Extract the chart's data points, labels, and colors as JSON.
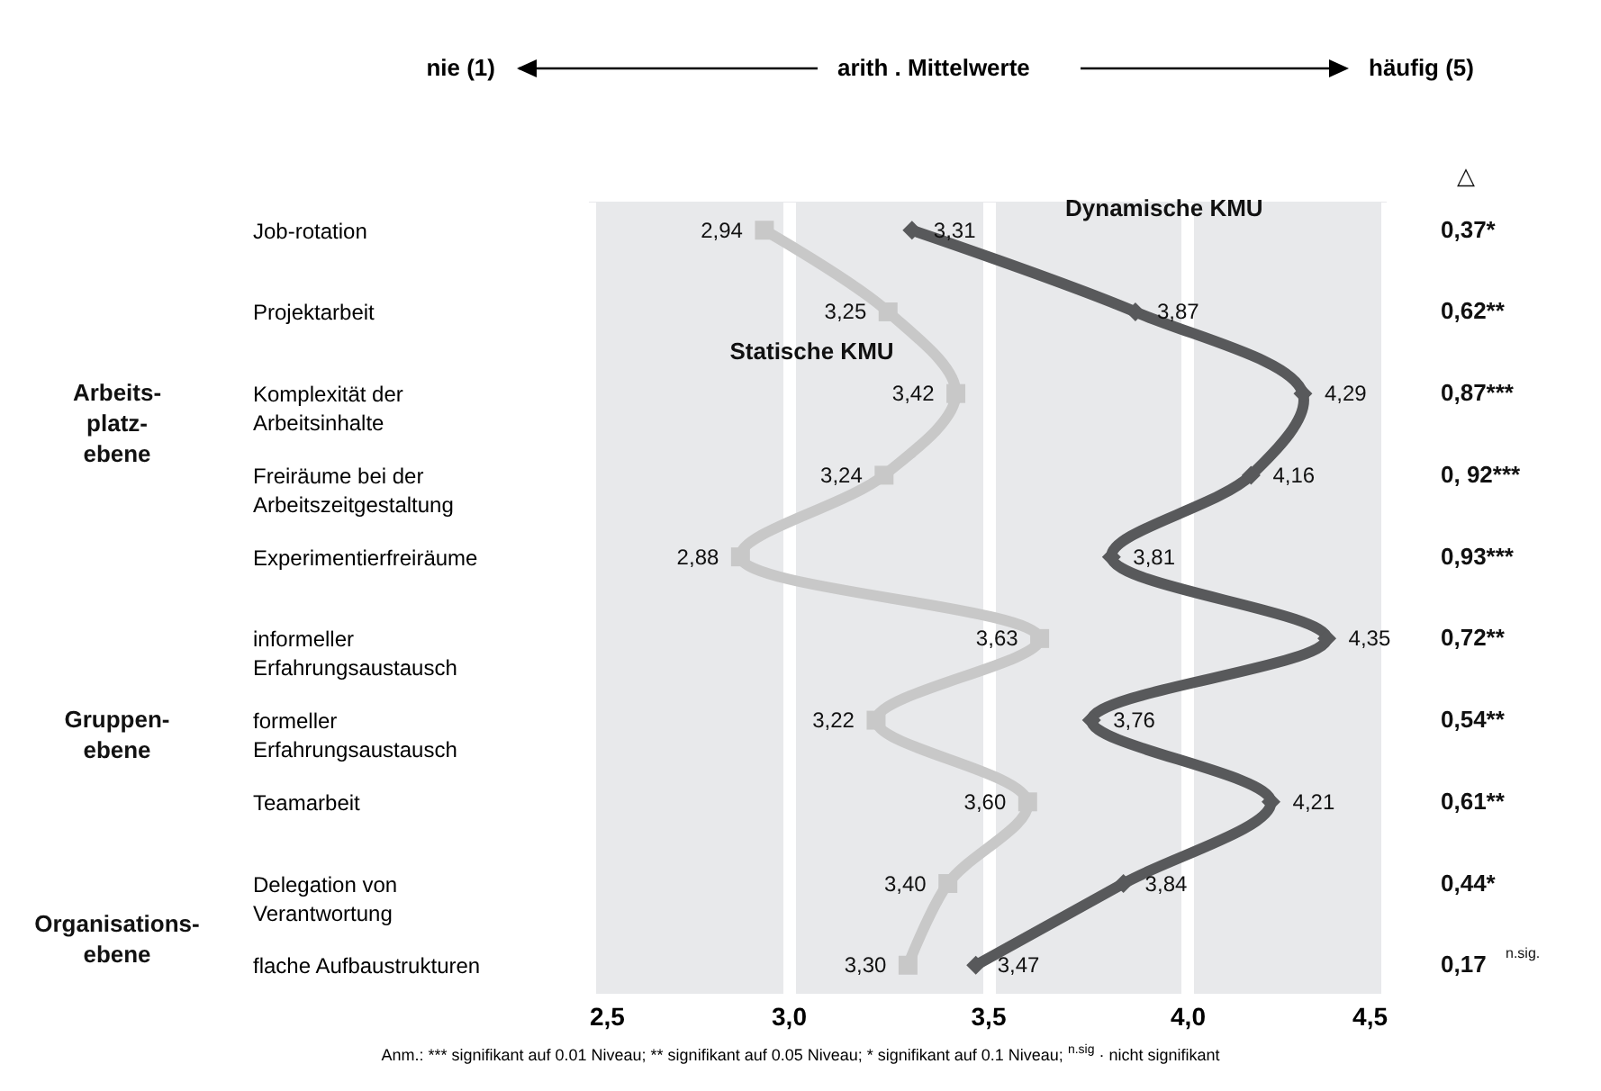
{
  "chart_data": {
    "type": "line",
    "orientation": "horizontal",
    "categories": [
      "Job-rotation",
      "Projektarbeit",
      "Komplexität der\nArbeitsinhalte",
      "Freiräume bei der\nArbeitszeitgestaltung",
      "Experimentierfreiräume",
      "informeller\nErfahrungsaustausch",
      "formeller\nErfahrungsaustausch",
      "Teamarbeit",
      "Delegation von\nVerantwortung",
      "flache Aufbaustrukturen"
    ],
    "series": [
      {
        "name": "Statische KMU",
        "color": "#c8c8c8",
        "marker": "square",
        "values": [
          2.94,
          3.25,
          3.42,
          3.24,
          2.88,
          3.63,
          3.22,
          3.6,
          3.4,
          3.3
        ],
        "value_labels": [
          "2,94",
          "3,25",
          "3,42",
          "3,24",
          "2,88",
          "3,63",
          "3,22",
          "3,60",
          "3,40",
          "3,30"
        ]
      },
      {
        "name": "Dynamische KMU",
        "color": "#58595b",
        "marker": "diamond",
        "values": [
          3.31,
          3.87,
          4.29,
          4.16,
          3.81,
          4.35,
          3.76,
          4.21,
          3.84,
          3.47
        ],
        "value_labels": [
          "3,31",
          "3,87",
          "4,29",
          "4,16",
          "3,81",
          "4,35",
          "3,76",
          "4,21",
          "3,84",
          "3,47"
        ]
      }
    ],
    "xlim": [
      2.5,
      4.5
    ],
    "xticks": [
      {
        "value": 2.5,
        "label": "2,5"
      },
      {
        "value": 3.0,
        "label": "3,0"
      },
      {
        "value": 3.5,
        "label": "3,5"
      },
      {
        "value": 4.0,
        "label": "4,0"
      },
      {
        "value": 4.5,
        "label": "4,5"
      }
    ],
    "grid": "x",
    "line_style": "solid",
    "annotations": [
      "nie (1)",
      "arith . Mittelwerte",
      "häufig (5)",
      "△",
      "0,37*",
      "0,62**",
      "0,87***",
      "0, 92***",
      "0,93***",
      "0,72**",
      "0,54**",
      "0,61**",
      "0,44*",
      "0,17 $^{n.sig.}$",
      "Arbeits-\nplatz-\nebene",
      "Gruppen-\nebene",
      "Organisations-\nebene",
      "Anm.: *** signifikant auf 0.01 Niveau; ** signifikant auf 0.05 Niveau; * signifikant auf 0.1 Niveau; $^{n.sig}$ · nicht signifikant"
    ]
  }
}
